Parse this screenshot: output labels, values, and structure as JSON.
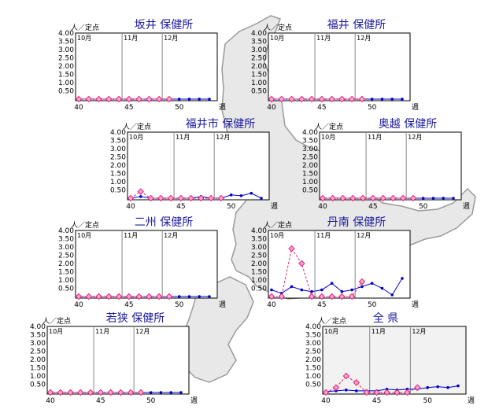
{
  "colors": {
    "title": "#1a1aa0",
    "current_series": "#0000cc",
    "previous_series": "#e0207a",
    "map_fill": "#e8e8e8",
    "map_stroke": "#9a9a9a"
  },
  "chart_data": [
    {
      "type": "line",
      "title": "坂井 保健所",
      "ylabel": "人／定点",
      "xlabel": "週",
      "ylim": [
        0,
        4
      ],
      "yticks": [
        "4.00",
        "3.50",
        "3.00",
        "2.50",
        "2.00",
        "1.50",
        "1.00",
        "0.50"
      ],
      "xlim": [
        40,
        53
      ],
      "xticks": [
        40,
        45,
        50
      ],
      "months": [
        {
          "label": "10月",
          "week": 40
        },
        {
          "label": "11月",
          "week": 44
        },
        {
          "label": "12月",
          "week": 48
        }
      ],
      "series": [
        {
          "style": "solid",
          "points": [
            [
              40,
              0
            ],
            [
              41,
              0
            ],
            [
              42,
              0
            ],
            [
              43,
              0
            ],
            [
              44,
              0
            ],
            [
              45,
              0
            ],
            [
              46,
              0
            ],
            [
              47,
              0
            ],
            [
              48,
              0
            ],
            [
              49,
              0
            ],
            [
              50,
              0
            ],
            [
              51,
              0
            ],
            [
              52,
              0
            ],
            [
              53,
              0
            ]
          ]
        },
        {
          "style": "dashed",
          "points": [
            [
              40,
              0
            ],
            [
              41,
              0
            ],
            [
              42,
              0
            ],
            [
              43,
              0
            ],
            [
              44,
              0
            ],
            [
              45,
              0
            ],
            [
              46,
              0
            ],
            [
              47,
              0
            ],
            [
              48,
              0
            ],
            [
              49,
              0
            ]
          ]
        }
      ]
    },
    {
      "type": "line",
      "title": "福井 保健所",
      "ylabel": "人／定点",
      "xlabel": "週",
      "ylim": [
        0,
        4
      ],
      "yticks": [
        "4.00",
        "3.50",
        "3.00",
        "2.50",
        "2.00",
        "1.50",
        "1.00",
        "0.50"
      ],
      "xlim": [
        40,
        53
      ],
      "xticks": [
        40,
        45,
        50
      ],
      "months": [
        {
          "label": "10月",
          "week": 40
        },
        {
          "label": "11月",
          "week": 44
        },
        {
          "label": "12月",
          "week": 48
        }
      ],
      "series": [
        {
          "style": "solid",
          "points": [
            [
              40,
              0
            ],
            [
              41,
              0
            ],
            [
              42,
              0
            ],
            [
              43,
              0
            ],
            [
              44,
              0
            ],
            [
              45,
              0
            ],
            [
              46,
              0
            ],
            [
              47,
              0
            ],
            [
              48,
              0
            ],
            [
              49,
              0
            ],
            [
              50,
              0
            ],
            [
              51,
              0
            ],
            [
              52,
              0
            ],
            [
              53,
              0
            ]
          ]
        },
        {
          "style": "dashed",
          "points": [
            [
              40,
              0
            ],
            [
              41,
              0
            ],
            [
              42,
              0
            ],
            [
              43,
              0
            ],
            [
              44,
              0
            ],
            [
              45,
              0
            ],
            [
              46,
              0
            ],
            [
              47,
              0
            ],
            [
              48,
              0
            ],
            [
              49,
              0
            ]
          ]
        }
      ]
    },
    {
      "type": "line",
      "title": "福井市 保健所",
      "ylabel": "人／定点",
      "xlabel": "週",
      "ylim": [
        0,
        4
      ],
      "yticks": [
        "4.00",
        "3.50",
        "3.00",
        "2.50",
        "2.00",
        "1.50",
        "1.00",
        "0.50"
      ],
      "xlim": [
        40,
        53
      ],
      "xticks": [
        40,
        45,
        50
      ],
      "months": [
        {
          "label": "10月",
          "week": 40
        },
        {
          "label": "11月",
          "week": 44
        },
        {
          "label": "12月",
          "week": 48
        }
      ],
      "series": [
        {
          "style": "solid",
          "points": [
            [
              40,
              0
            ],
            [
              41,
              0.1
            ],
            [
              42,
              0
            ],
            [
              43,
              0
            ],
            [
              44,
              0
            ],
            [
              45,
              0
            ],
            [
              46,
              0
            ],
            [
              47,
              0.1
            ],
            [
              48,
              0
            ],
            [
              49,
              0
            ],
            [
              50,
              0.2
            ],
            [
              51,
              0.15
            ],
            [
              52,
              0.3
            ],
            [
              53,
              0
            ]
          ]
        },
        {
          "style": "dashed",
          "points": [
            [
              40,
              0
            ],
            [
              41,
              0.4
            ],
            [
              42,
              0
            ],
            [
              43,
              0
            ],
            [
              44,
              0
            ],
            [
              45,
              0
            ],
            [
              46,
              0
            ],
            [
              47,
              0
            ],
            [
              48,
              0
            ],
            [
              49,
              0
            ]
          ]
        }
      ]
    },
    {
      "type": "line",
      "title": "奥越 保健所",
      "ylabel": "人／定点",
      "xlabel": "週",
      "ylim": [
        0,
        4
      ],
      "yticks": [
        "4.00",
        "3.50",
        "3.00",
        "2.50",
        "2.00",
        "1.50",
        "1.00",
        "0.50"
      ],
      "xlim": [
        40,
        53
      ],
      "xticks": [
        40,
        45,
        50
      ],
      "months": [
        {
          "label": "10月",
          "week": 40
        },
        {
          "label": "11月",
          "week": 44
        },
        {
          "label": "12月",
          "week": 48
        }
      ],
      "series": [
        {
          "style": "solid",
          "points": [
            [
              40,
              0
            ],
            [
              41,
              0
            ],
            [
              42,
              0
            ],
            [
              43,
              0
            ],
            [
              44,
              0
            ],
            [
              45,
              0
            ],
            [
              46,
              0
            ],
            [
              47,
              0
            ],
            [
              48,
              0
            ],
            [
              49,
              0
            ],
            [
              50,
              0
            ],
            [
              51,
              0
            ],
            [
              52,
              0
            ],
            [
              53,
              0
            ]
          ]
        },
        {
          "style": "dashed",
          "points": [
            [
              40,
              0
            ],
            [
              41,
              0
            ],
            [
              42,
              0
            ],
            [
              43,
              0
            ],
            [
              44,
              0
            ],
            [
              45,
              0
            ],
            [
              46,
              0
            ],
            [
              47,
              0
            ],
            [
              48,
              0
            ],
            [
              49,
              0
            ]
          ]
        }
      ]
    },
    {
      "type": "line",
      "title": "二州 保健所",
      "ylabel": "人／定点",
      "xlabel": "週",
      "ylim": [
        0,
        4
      ],
      "yticks": [
        "4.00",
        "3.50",
        "3.00",
        "2.50",
        "2.00",
        "1.50",
        "1.00",
        "0.50"
      ],
      "xlim": [
        40,
        53
      ],
      "xticks": [
        40,
        45,
        50
      ],
      "months": [
        {
          "label": "10月",
          "week": 40
        },
        {
          "label": "11月",
          "week": 44
        },
        {
          "label": "12月",
          "week": 48
        }
      ],
      "series": [
        {
          "style": "solid",
          "points": [
            [
              40,
              0
            ],
            [
              41,
              0
            ],
            [
              42,
              0
            ],
            [
              43,
              0
            ],
            [
              44,
              0
            ],
            [
              45,
              0
            ],
            [
              46,
              0
            ],
            [
              47,
              0
            ],
            [
              48,
              0
            ],
            [
              49,
              0
            ],
            [
              50,
              0
            ],
            [
              51,
              0
            ],
            [
              52,
              0
            ],
            [
              53,
              0
            ]
          ]
        },
        {
          "style": "dashed",
          "points": [
            [
              40,
              0
            ],
            [
              41,
              0
            ],
            [
              42,
              0
            ],
            [
              43,
              0
            ],
            [
              44,
              0
            ],
            [
              45,
              0
            ],
            [
              46,
              0
            ],
            [
              47,
              0
            ],
            [
              48,
              0
            ],
            [
              49,
              0
            ]
          ]
        }
      ]
    },
    {
      "type": "line",
      "title": "丹南 保健所",
      "ylabel": "人／定点",
      "xlabel": "週",
      "ylim": [
        0,
        4
      ],
      "yticks": [
        "4.00",
        "3.50",
        "3.00",
        "2.50",
        "2.00",
        "1.50",
        "1.00",
        "0.50"
      ],
      "xlim": [
        40,
        53
      ],
      "xticks": [
        40,
        45,
        50
      ],
      "months": [
        {
          "label": "10月",
          "week": 40
        },
        {
          "label": "11月",
          "week": 44
        },
        {
          "label": "12月",
          "week": 48
        }
      ],
      "series": [
        {
          "style": "solid",
          "points": [
            [
              40,
              0.4
            ],
            [
              41,
              0.2
            ],
            [
              42,
              0.6
            ],
            [
              43,
              0.4
            ],
            [
              44,
              0.3
            ],
            [
              45,
              0.4
            ],
            [
              46,
              0.8
            ],
            [
              47,
              0.3
            ],
            [
              48,
              0.4
            ],
            [
              49,
              0.6
            ],
            [
              50,
              0.8
            ],
            [
              51,
              0.5
            ],
            [
              52,
              0.1
            ],
            [
              53,
              1.1
            ]
          ]
        },
        {
          "style": "dashed",
          "points": [
            [
              40,
              0
            ],
            [
              41,
              0
            ],
            [
              42,
              2.9
            ],
            [
              43,
              2.0
            ],
            [
              44,
              0
            ],
            [
              45,
              0
            ],
            [
              46,
              0
            ],
            [
              47,
              0
            ],
            [
              48,
              0
            ],
            [
              49,
              0.9
            ]
          ]
        }
      ]
    },
    {
      "type": "line",
      "title": "若狭 保健所",
      "ylabel": "人／定点",
      "xlabel": "週",
      "ylim": [
        0,
        4
      ],
      "yticks": [
        "4.00",
        "3.50",
        "3.00",
        "2.50",
        "2.00",
        "1.50",
        "1.00",
        "0.50"
      ],
      "xlim": [
        40,
        53
      ],
      "xticks": [
        40,
        45,
        50
      ],
      "months": [
        {
          "label": "10月",
          "week": 40
        },
        {
          "label": "11月",
          "week": 44
        },
        {
          "label": "12月",
          "week": 48
        }
      ],
      "series": [
        {
          "style": "solid",
          "points": [
            [
              40,
              0
            ],
            [
              41,
              0
            ],
            [
              42,
              0
            ],
            [
              43,
              0
            ],
            [
              44,
              0
            ],
            [
              45,
              0
            ],
            [
              46,
              0
            ],
            [
              47,
              0
            ],
            [
              48,
              0
            ],
            [
              49,
              0
            ],
            [
              50,
              0
            ],
            [
              51,
              0
            ],
            [
              52,
              0
            ],
            [
              53,
              0
            ]
          ]
        },
        {
          "style": "dashed",
          "points": [
            [
              40,
              0
            ],
            [
              41,
              0
            ],
            [
              42,
              0
            ],
            [
              43,
              0
            ],
            [
              44,
              0
            ],
            [
              45,
              0
            ],
            [
              46,
              0
            ],
            [
              47,
              0
            ],
            [
              48,
              0
            ],
            [
              49,
              0
            ]
          ]
        }
      ]
    },
    {
      "type": "line",
      "title": "全 県",
      "ylabel": "人／定点",
      "xlabel": "週",
      "ylim": [
        0,
        4
      ],
      "yticks": [
        "4.00",
        "3.50",
        "3.00",
        "2.50",
        "2.00",
        "1.50",
        "1.00",
        "0.50"
      ],
      "xlim": [
        40,
        53
      ],
      "xticks": [
        40,
        45,
        50
      ],
      "months": [
        {
          "label": "10月",
          "week": 40
        },
        {
          "label": "11月",
          "week": 44
        },
        {
          "label": "12月",
          "week": 48
        }
      ],
      "series": [
        {
          "style": "solid",
          "points": [
            [
              40,
              0.05
            ],
            [
              41,
              0.1
            ],
            [
              42,
              0.15
            ],
            [
              43,
              0.1
            ],
            [
              44,
              0.1
            ],
            [
              45,
              0.1
            ],
            [
              46,
              0.2
            ],
            [
              47,
              0.15
            ],
            [
              48,
              0.2
            ],
            [
              49,
              0.2
            ],
            [
              50,
              0.3
            ],
            [
              51,
              0.35
            ],
            [
              52,
              0.3
            ],
            [
              53,
              0.4
            ]
          ]
        },
        {
          "style": "dashed",
          "points": [
            [
              40,
              0
            ],
            [
              41,
              0.3
            ],
            [
              42,
              1.0
            ],
            [
              43,
              0.6
            ],
            [
              44,
              0
            ],
            [
              45,
              0
            ],
            [
              46,
              0
            ],
            [
              47,
              0
            ],
            [
              48,
              0
            ],
            [
              49,
              0.3
            ]
          ]
        }
      ]
    }
  ]
}
